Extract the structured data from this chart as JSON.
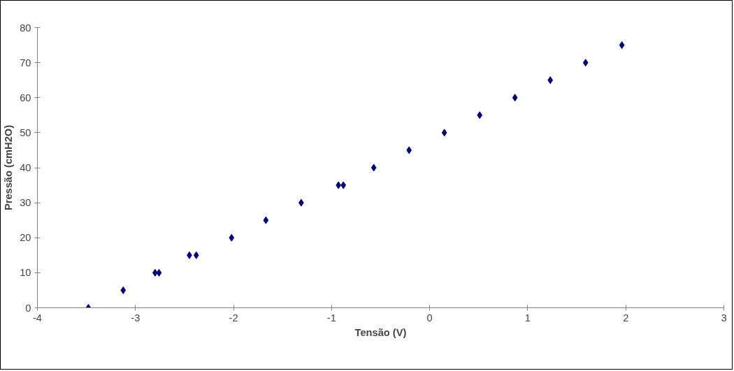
{
  "chart_data": {
    "type": "scatter",
    "xlabel": "Tensão (V)",
    "ylabel": "Pressão (cmH2O)",
    "series": [
      {
        "color": "#000080",
        "x": [
          -3.48,
          -3.125,
          -2.8,
          -2.76,
          -2.45,
          -2.38,
          -2.02,
          -1.67,
          -1.31,
          -0.93,
          -0.88,
          -0.57,
          -0.21,
          0.15,
          0.51,
          0.87,
          1.23,
          1.59,
          1.96
        ],
        "values": [
          0,
          5,
          10,
          10,
          15,
          15,
          20,
          25,
          30,
          35,
          35,
          40,
          45,
          50,
          55,
          60,
          65,
          70,
          75
        ]
      }
    ],
    "marker": "diamond",
    "xlim": [
      -4,
      3
    ],
    "ylim": [
      0,
      80
    ],
    "xticks": [
      -4,
      -3,
      -2,
      -1,
      0,
      1,
      2,
      3
    ],
    "yticks": [
      0,
      10,
      20,
      30,
      40,
      50,
      60,
      70,
      80
    ],
    "grid": false
  }
}
